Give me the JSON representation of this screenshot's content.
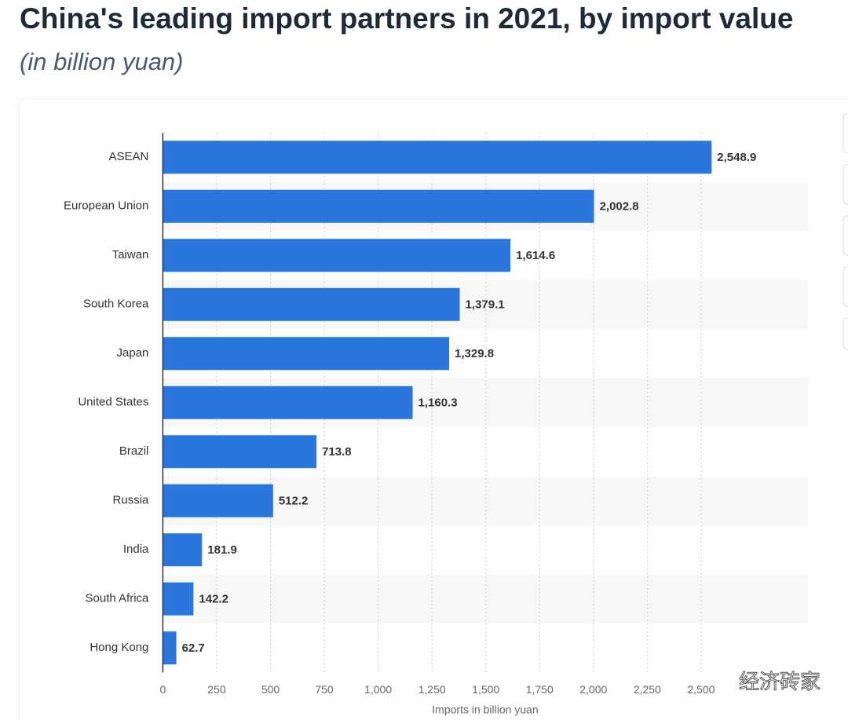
{
  "chart_data": {
    "type": "bar",
    "orientation": "horizontal",
    "title": "China's leading import partners in 2021, by import value",
    "subtitle": "(in billion yuan)",
    "x_label": "Imports in billion yuan",
    "watermark": "经济砖家",
    "categories": [
      "ASEAN",
      "European Union",
      "Taiwan",
      "South Korea",
      "Japan",
      "United States",
      "Brazil",
      "Russia",
      "India",
      "South Africa",
      "Hong Kong"
    ],
    "values": [
      2548.9,
      2002.8,
      1614.6,
      1379.1,
      1329.8,
      1160.3,
      713.8,
      512.2,
      181.9,
      142.2,
      62.7
    ],
    "value_labels": [
      "2,548.9",
      "2,002.8",
      "1,614.6",
      "1,379.1",
      "1,329.8",
      "1,160.3",
      "713.8",
      "512.2",
      "181.9",
      "142.2",
      "62.7"
    ],
    "color": "#2a76dd",
    "xlim": [
      0,
      3000
    ],
    "xticks": [
      0,
      250,
      500,
      750,
      {
        "value": 1000,
        "label": "1,000"
      },
      {
        "value": 1250,
        "label": "1,250"
      },
      {
        "value": 1500,
        "label": "1,500"
      },
      {
        "value": 1750,
        "label": "1,750"
      },
      {
        "value": 2000,
        "label": "2,000"
      },
      {
        "value": 2250,
        "label": "2,250"
      },
      {
        "value": 2500,
        "label": "2,500"
      }
    ],
    "grid": true
  }
}
